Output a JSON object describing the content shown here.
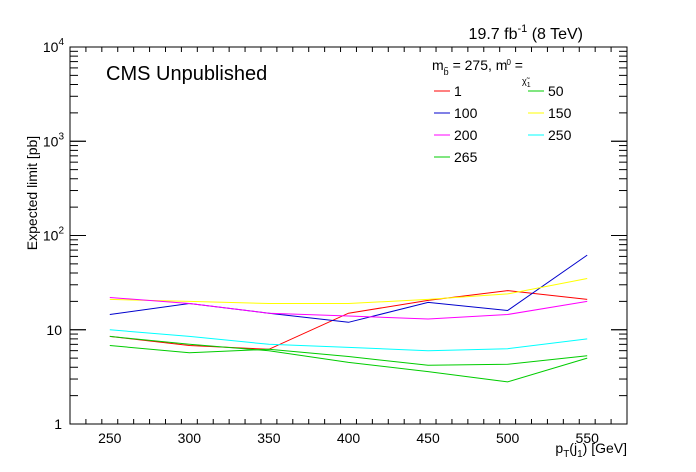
{
  "chart_data": {
    "type": "line",
    "header": {
      "lumi_value": "19.7 fb",
      "lumi_exp": "-1",
      "lumi_energy": " (8 TeV)"
    },
    "cms_label": "CMS Unpublished",
    "xlabel": {
      "main": "p",
      "sub": "T",
      "paren": "(j",
      "sub2": "1",
      "tail": ") [GeV]"
    },
    "ylabel": "Expected limit [pb]",
    "xlim": [
      225,
      575
    ],
    "ylim": [
      1,
      10000
    ],
    "yscale": "log",
    "x_ticks": [
      250,
      300,
      350,
      400,
      450,
      500,
      550
    ],
    "x_tick_labels": [
      "250",
      "300",
      "350",
      "400",
      "450",
      "500",
      "550"
    ],
    "y_ticks": [
      {
        "value": 1,
        "base": "1",
        "exp": ""
      },
      {
        "value": 10,
        "base": "10",
        "exp": ""
      },
      {
        "value": 100,
        "base": "10",
        "exp": "2"
      },
      {
        "value": 1000,
        "base": "10",
        "exp": "3"
      },
      {
        "value": 10000,
        "base": "10",
        "exp": "4"
      }
    ],
    "legend_title": {
      "m": "m",
      "sub_b": "b̃",
      "mid": " = 275, m",
      "sub_chi": "χ̃",
      "sub_chi_idx": "1",
      "sup_chi": "0",
      "end": " ="
    },
    "series": [
      {
        "name": "1",
        "color": "#ff0000",
        "x": [
          250,
          300,
          350,
          400,
          450,
          500,
          550
        ],
        "y": [
          8.5,
          6.8,
          6.2,
          15.0,
          20.5,
          26.0,
          21.0
        ]
      },
      {
        "name": "50",
        "color": "#00cc00",
        "x": [
          250,
          300,
          350,
          400,
          450,
          500,
          550
        ],
        "y": [
          8.5,
          7.0,
          6.0,
          4.5,
          3.6,
          2.8,
          5.0
        ]
      },
      {
        "name": "100",
        "color": "#0000cc",
        "x": [
          250,
          300,
          350,
          400,
          450,
          500,
          550
        ],
        "y": [
          14.5,
          19.0,
          15.0,
          12.0,
          19.5,
          16.0,
          62.0
        ]
      },
      {
        "name": "150",
        "color": "#ffff00",
        "x": [
          250,
          300,
          350,
          400,
          450,
          500,
          550
        ],
        "y": [
          21.0,
          20.0,
          19.0,
          19.0,
          21.0,
          24.0,
          35.0
        ]
      },
      {
        "name": "200",
        "color": "#ff00ff",
        "x": [
          250,
          300,
          350,
          400,
          450,
          500,
          550
        ],
        "y": [
          22.0,
          19.0,
          15.0,
          14.0,
          13.0,
          14.5,
          20.0
        ]
      },
      {
        "name": "250",
        "color": "#00ffff",
        "x": [
          250,
          300,
          350,
          400,
          450,
          500,
          550
        ],
        "y": [
          10.0,
          8.5,
          7.0,
          6.5,
          6.0,
          6.3,
          8.0
        ]
      },
      {
        "name": "265",
        "color": "#00cc00",
        "x": [
          250,
          300,
          350,
          400,
          450,
          500,
          550
        ],
        "y": [
          6.8,
          5.7,
          6.2,
          5.2,
          4.2,
          4.3,
          5.3
        ]
      }
    ]
  }
}
